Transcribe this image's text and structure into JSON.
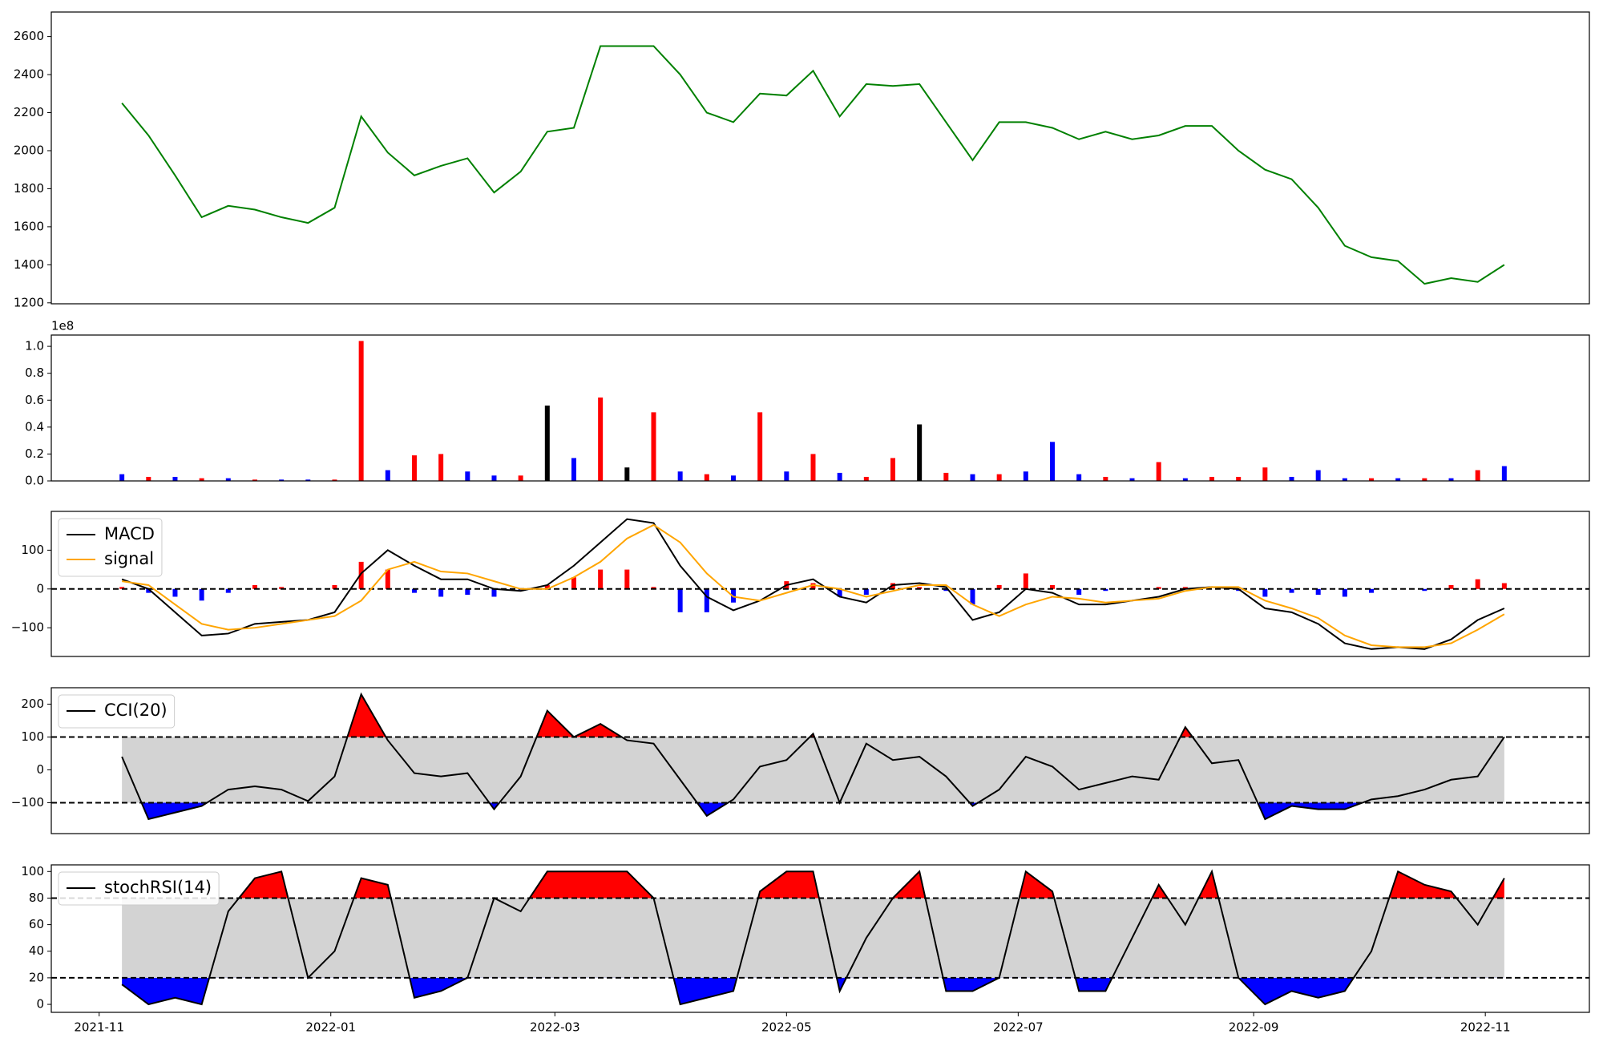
{
  "chart_data": [
    {
      "type": "line",
      "xlim": [
        -12.6,
        392.4
      ],
      "ylim": [
        1195,
        2729
      ],
      "yticks": [
        1200,
        1400,
        1600,
        1800,
        2000,
        2200,
        2400,
        2600
      ],
      "x": [
        6,
        13,
        20,
        27,
        34,
        41,
        48,
        55,
        62,
        69,
        76,
        83,
        90,
        97,
        104,
        111,
        118,
        125,
        132,
        139,
        146,
        153,
        160,
        167,
        174,
        181,
        188,
        195,
        202,
        209,
        216,
        223,
        230,
        237,
        244,
        251,
        258,
        265,
        272,
        279,
        286,
        293,
        300,
        307,
        314,
        321,
        328,
        335,
        342,
        349,
        356,
        363,
        370
      ],
      "series": [
        {
          "color": "#008000",
          "values": [
            2250,
            2080,
            1870,
            1650,
            1710,
            1690,
            1650,
            1620,
            1700,
            2180,
            1990,
            1870,
            1920,
            1960,
            1780,
            1890,
            2100,
            2120,
            2550,
            2550,
            2550,
            2400,
            2200,
            2150,
            2300,
            2290,
            2420,
            2180,
            2350,
            2340,
            2350,
            2150,
            1950,
            2150,
            2150,
            2120,
            2060,
            2100,
            2060,
            2080,
            2130,
            2130,
            2000,
            1900,
            1850,
            1700,
            1500,
            1440,
            1420,
            1300,
            1330,
            1310,
            1400
          ]
        }
      ]
    },
    {
      "type": "bar",
      "xlim": [
        -12.6,
        392.4
      ],
      "ylim": [
        0,
        1.084
      ],
      "offset_label": "1e8",
      "yticks": [
        {
          "value": 0,
          "label": "0.0"
        },
        0.2,
        0.4,
        0.6,
        0.8,
        {
          "value": 1,
          "label": "1.0"
        }
      ],
      "x": [
        6,
        13,
        20,
        27,
        34,
        41,
        48,
        55,
        62,
        69,
        76,
        83,
        90,
        97,
        104,
        111,
        118,
        125,
        132,
        139,
        146,
        153,
        160,
        167,
        174,
        181,
        188,
        195,
        202,
        209,
        216,
        223,
        230,
        237,
        244,
        251,
        258,
        265,
        272,
        279,
        286,
        293,
        300,
        307,
        314,
        321,
        328,
        335,
        342,
        349,
        356,
        363,
        370
      ],
      "values": [
        0.05,
        0.03,
        0.03,
        0.02,
        0.02,
        0.01,
        0.01,
        0.01,
        0.01,
        1.04,
        0.08,
        0.19,
        0.2,
        0.07,
        0.04,
        0.04,
        0.56,
        0.17,
        0.62,
        0.1,
        0.51,
        0.07,
        0.05,
        0.04,
        0.51,
        0.07,
        0.2,
        0.06,
        0.03,
        0.17,
        0.42,
        0.06,
        0.05,
        0.05,
        0.07,
        0.29,
        0.05,
        0.03,
        0.02,
        0.14,
        0.02,
        0.03,
        0.03,
        0.1,
        0.03,
        0.08,
        0.02,
        0.02,
        0.02,
        0.02,
        0.02,
        0.08,
        0.11
      ],
      "colors": [
        "blue",
        "red",
        "blue",
        "red",
        "blue",
        "red",
        "blue",
        "blue",
        "red",
        "red",
        "blue",
        "red",
        "red",
        "blue",
        "blue",
        "red",
        "black",
        "blue",
        "red",
        "black",
        "red",
        "blue",
        "red",
        "blue",
        "red",
        "blue",
        "red",
        "blue",
        "red",
        "red",
        "black",
        "red",
        "blue",
        "red",
        "blue",
        "blue",
        "blue",
        "red",
        "blue",
        "red",
        "blue",
        "red",
        "red",
        "red",
        "blue",
        "blue",
        "blue",
        "red",
        "blue",
        "red",
        "blue",
        "red",
        "blue"
      ]
    },
    {
      "type": "line",
      "xlim": [
        -12.6,
        392.4
      ],
      "ylim": [
        -174,
        200
      ],
      "legend": "upper left",
      "hline": 0,
      "yticks": [
        {
          "value": -100,
          "label": "−100"
        },
        0,
        100
      ],
      "x": [
        6,
        13,
        20,
        27,
        34,
        41,
        48,
        55,
        62,
        69,
        76,
        83,
        90,
        97,
        104,
        111,
        118,
        125,
        132,
        139,
        146,
        153,
        160,
        167,
        174,
        181,
        188,
        195,
        202,
        209,
        216,
        223,
        230,
        237,
        244,
        251,
        258,
        265,
        272,
        279,
        286,
        293,
        300,
        307,
        314,
        321,
        328,
        335,
        342,
        349,
        356,
        363,
        370
      ],
      "series": [
        {
          "type": "bar",
          "pos_color": "red",
          "neg_color": "blue",
          "values": [
            5,
            -10,
            -20,
            -30,
            -10,
            10,
            5,
            0,
            10,
            70,
            50,
            -10,
            -20,
            -15,
            -20,
            -5,
            10,
            30,
            50,
            50,
            5,
            -60,
            -60,
            -35,
            0,
            20,
            15,
            -20,
            -15,
            15,
            5,
            -5,
            -40,
            10,
            40,
            10,
            -15,
            -5,
            0,
            5,
            5,
            0,
            -5,
            -20,
            -10,
            -15,
            -20,
            -10,
            0,
            -5,
            10,
            25,
            15
          ]
        },
        {
          "name": "MACD",
          "color": "#000000",
          "values": [
            25,
            0,
            -60,
            -120,
            -115,
            -90,
            -85,
            -80,
            -60,
            40,
            100,
            60,
            25,
            25,
            0,
            -5,
            10,
            60,
            120,
            180,
            170,
            60,
            -20,
            -55,
            -30,
            10,
            25,
            -20,
            -35,
            10,
            15,
            5,
            -80,
            -60,
            0,
            -10,
            -40,
            -40,
            -30,
            -20,
            0,
            5,
            0,
            -50,
            -60,
            -90,
            -140,
            -155,
            -150,
            -155,
            -130,
            -80,
            -50
          ]
        },
        {
          "name": "signal",
          "color": "#ffa500",
          "values": [
            20,
            10,
            -40,
            -90,
            -105,
            -100,
            -90,
            -80,
            -70,
            -30,
            50,
            70,
            45,
            40,
            20,
            0,
            0,
            30,
            70,
            130,
            165,
            120,
            40,
            -20,
            -30,
            -10,
            10,
            0,
            -20,
            -5,
            10,
            10,
            -40,
            -70,
            -40,
            -20,
            -25,
            -35,
            -30,
            -25,
            -5,
            5,
            5,
            -30,
            -50,
            -75,
            -120,
            -145,
            -150,
            -150,
            -140,
            -105,
            -65
          ]
        }
      ]
    },
    {
      "type": "line",
      "xlim": [
        -12.6,
        392.4
      ],
      "ylim": [
        -194,
        250
      ],
      "legend": "upper left",
      "thresholds": [
        100,
        -100
      ],
      "band_color": "#d3d3d3",
      "upper_color": "red",
      "lower_color": "blue",
      "yticks": [
        {
          "value": -100,
          "label": "−100"
        },
        0,
        100,
        200
      ],
      "x": [
        6,
        13,
        20,
        27,
        34,
        41,
        48,
        55,
        62,
        69,
        76,
        83,
        90,
        97,
        104,
        111,
        118,
        125,
        132,
        139,
        146,
        153,
        160,
        167,
        174,
        181,
        188,
        195,
        202,
        209,
        216,
        223,
        230,
        237,
        244,
        251,
        258,
        265,
        272,
        279,
        286,
        293,
        300,
        307,
        314,
        321,
        328,
        335,
        342,
        349,
        356,
        363,
        370
      ],
      "series": [
        {
          "name": "CCI(20)",
          "color": "#000000",
          "values": [
            40,
            -150,
            -130,
            -110,
            -60,
            -50,
            -60,
            -95,
            -20,
            230,
            90,
            -10,
            -20,
            -10,
            -120,
            -20,
            180,
            100,
            140,
            90,
            80,
            -30,
            -140,
            -90,
            10,
            30,
            110,
            -100,
            80,
            30,
            40,
            -20,
            -110,
            -60,
            40,
            10,
            -60,
            -40,
            -20,
            -30,
            130,
            20,
            30,
            -150,
            -110,
            -120,
            -120,
            -90,
            -80,
            -60,
            -30,
            -20,
            100
          ]
        }
      ]
    },
    {
      "type": "line",
      "xlim": [
        -12.6,
        392.4
      ],
      "ylim": [
        -6,
        105
      ],
      "legend": "upper left",
      "thresholds": [
        80,
        20
      ],
      "band_color": "#d3d3d3",
      "upper_color": "red",
      "lower_color": "blue",
      "yticks": [
        0,
        20,
        40,
        60,
        80,
        100
      ],
      "xticks": [
        {
          "value": 0,
          "label": "2021-11"
        },
        {
          "value": 61,
          "label": "2022-01"
        },
        {
          "value": 120,
          "label": "2022-03"
        },
        {
          "value": 181,
          "label": "2022-05"
        },
        {
          "value": 242,
          "label": "2022-07"
        },
        {
          "value": 304,
          "label": "2022-09"
        },
        {
          "value": 365,
          "label": "2022-11"
        }
      ],
      "x": [
        6,
        13,
        20,
        27,
        34,
        41,
        48,
        55,
        62,
        69,
        76,
        83,
        90,
        97,
        104,
        111,
        118,
        125,
        132,
        139,
        146,
        153,
        160,
        167,
        174,
        181,
        188,
        195,
        202,
        209,
        216,
        223,
        230,
        237,
        244,
        251,
        258,
        265,
        272,
        279,
        286,
        293,
        300,
        307,
        314,
        321,
        328,
        335,
        342,
        349,
        356,
        363,
        370
      ],
      "series": [
        {
          "name": "stochRSI(14)",
          "color": "#000000",
          "values": [
            15,
            0,
            5,
            0,
            70,
            95,
            100,
            20,
            40,
            95,
            90,
            5,
            10,
            20,
            80,
            70,
            100,
            100,
            100,
            100,
            80,
            0,
            5,
            10,
            85,
            100,
            100,
            10,
            50,
            80,
            100,
            10,
            10,
            20,
            100,
            85,
            10,
            10,
            50,
            90,
            60,
            100,
            20,
            0,
            10,
            5,
            10,
            40,
            100,
            90,
            85,
            60,
            95
          ]
        }
      ]
    }
  ]
}
